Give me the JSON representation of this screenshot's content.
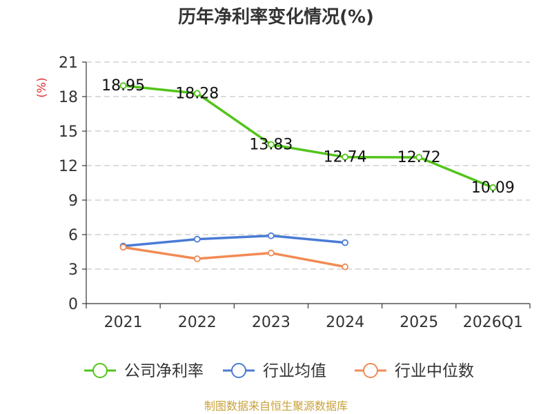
{
  "chart_data": {
    "type": "line",
    "title": "历年净利率变化情况(%)",
    "ylabel": "(%)",
    "categories": [
      "2021",
      "2022",
      "2023",
      "2024",
      "2025",
      "2026Q1"
    ],
    "ylim": [
      0,
      21
    ],
    "yticks": [
      0,
      3,
      6,
      9,
      12,
      15,
      18,
      21
    ],
    "grid": true,
    "legend_position": "bottom",
    "series": [
      {
        "name": "公司净利率",
        "color": "#52c41a",
        "values": [
          18.95,
          18.28,
          13.83,
          12.74,
          12.72,
          10.09
        ],
        "show_labels": true
      },
      {
        "name": "行业均值",
        "color": "#4a7bd6",
        "values": [
          5.0,
          5.6,
          5.9,
          5.3,
          null,
          null
        ],
        "show_labels": false
      },
      {
        "name": "行业中位数",
        "color": "#f28a54",
        "values": [
          4.9,
          3.9,
          4.4,
          3.2,
          null,
          null
        ],
        "show_labels": false
      }
    ]
  },
  "source": "制图数据来自恒生聚源数据库"
}
